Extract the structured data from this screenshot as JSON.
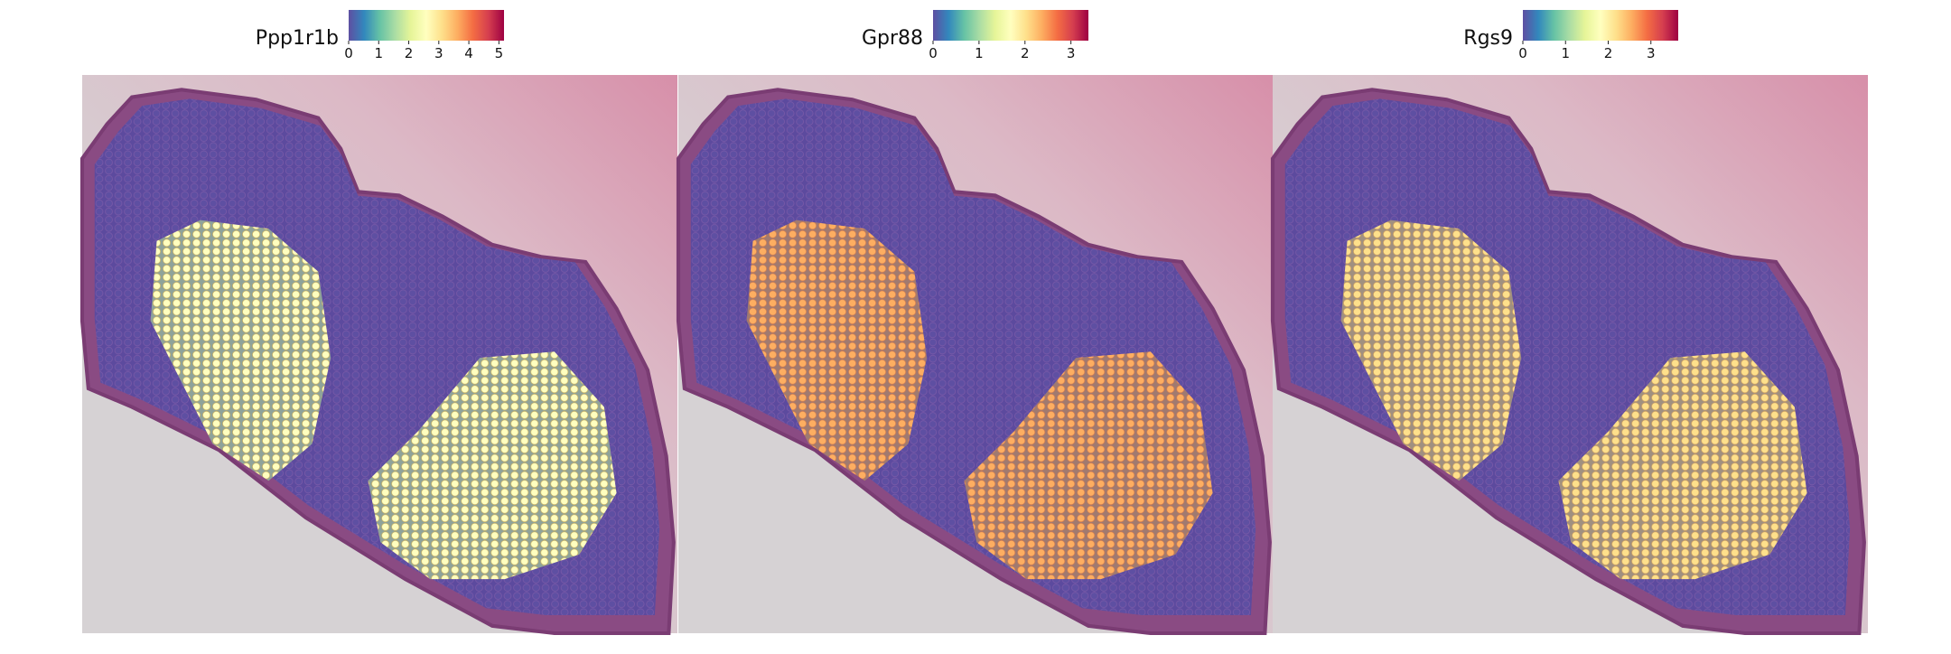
{
  "chart_data": [
    {
      "type": "spatial-scatter",
      "title": "Ppp1r1b",
      "clim": [
        0,
        5.17
      ],
      "cticks": [
        0,
        1,
        2,
        3,
        4,
        5
      ],
      "colormap": [
        "#5e4fa2",
        "#3288bd",
        "#66c2a5",
        "#abdda4",
        "#e6f598",
        "#ffffbf",
        "#fee08b",
        "#fdae61",
        "#f46d43",
        "#d53e4f",
        "#9e0142"
      ]
    },
    {
      "type": "spatial-scatter",
      "title": "Gpr88",
      "clim": [
        0,
        3.38
      ],
      "cticks": [
        0,
        1,
        2,
        3
      ],
      "colormap": [
        "#5e4fa2",
        "#3288bd",
        "#66c2a5",
        "#abdda4",
        "#e6f598",
        "#ffffbf",
        "#fee08b",
        "#fdae61",
        "#f46d43",
        "#d53e4f",
        "#9e0142"
      ]
    },
    {
      "type": "spatial-scatter",
      "title": "Rgs9",
      "clim": [
        0,
        3.64
      ],
      "cticks": [
        0,
        1,
        2,
        3
      ],
      "colormap": [
        "#5e4fa2",
        "#3288bd",
        "#66c2a5",
        "#abdda4",
        "#e6f598",
        "#ffffbf",
        "#fee08b",
        "#fdae61",
        "#f46d43",
        "#d53e4f",
        "#9e0142"
      ]
    }
  ]
}
